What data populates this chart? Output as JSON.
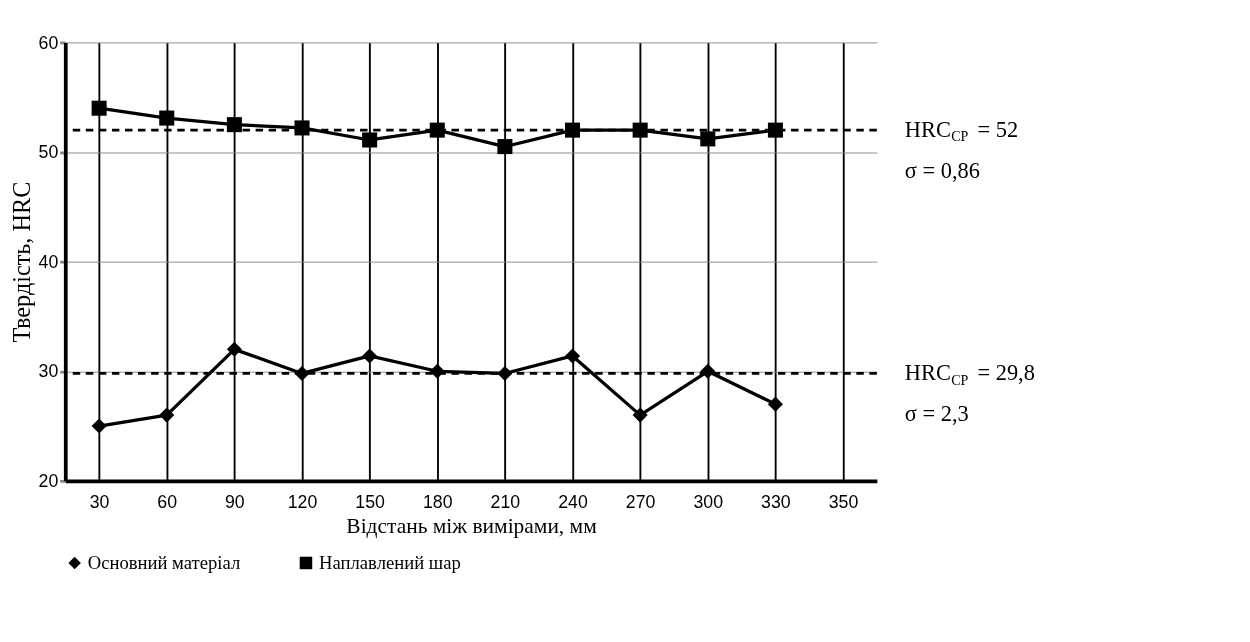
{
  "chart_data": {
    "type": "line",
    "xlabel": "Відстань між вимірами, мм",
    "ylabel": "Твердість, HRC",
    "categories": [
      "30",
      "60",
      "90",
      "120",
      "150",
      "180",
      "210",
      "240",
      "270",
      "300",
      "330",
      "350"
    ],
    "series": [
      {
        "name": "Основний матеріал",
        "color": "#000000",
        "marker": "diamond",
        "values": [
          25,
          26,
          32,
          29.8,
          31.4,
          30,
          29.8,
          31.4,
          26,
          30,
          27,
          null
        ]
      },
      {
        "name": "Наплавлений шар",
        "color": "#000000",
        "marker": "square",
        "values": [
          54,
          53.1,
          52.5,
          52.2,
          51.1,
          52,
          50.5,
          52,
          52,
          51.2,
          52,
          null
        ]
      }
    ],
    "ylim": [
      20,
      60
    ],
    "yticks": [
      20,
      30,
      40,
      50,
      60
    ],
    "grid": true,
    "legend": "bottom",
    "line_style": "solid",
    "ref_lines": [
      {
        "axis": "y",
        "value": 52,
        "label": "HRC$_{СР}$ = 52",
        "line_style": "dashed",
        "color": "#000000"
      },
      {
        "axis": "y",
        "value": 29.8,
        "label": "HRC$_{СР}$ = 29,8",
        "line_style": "dashed",
        "color": "#000000"
      }
    ],
    "annotations": [
      "σ = 0,86",
      "σ = 2,3"
    ]
  }
}
